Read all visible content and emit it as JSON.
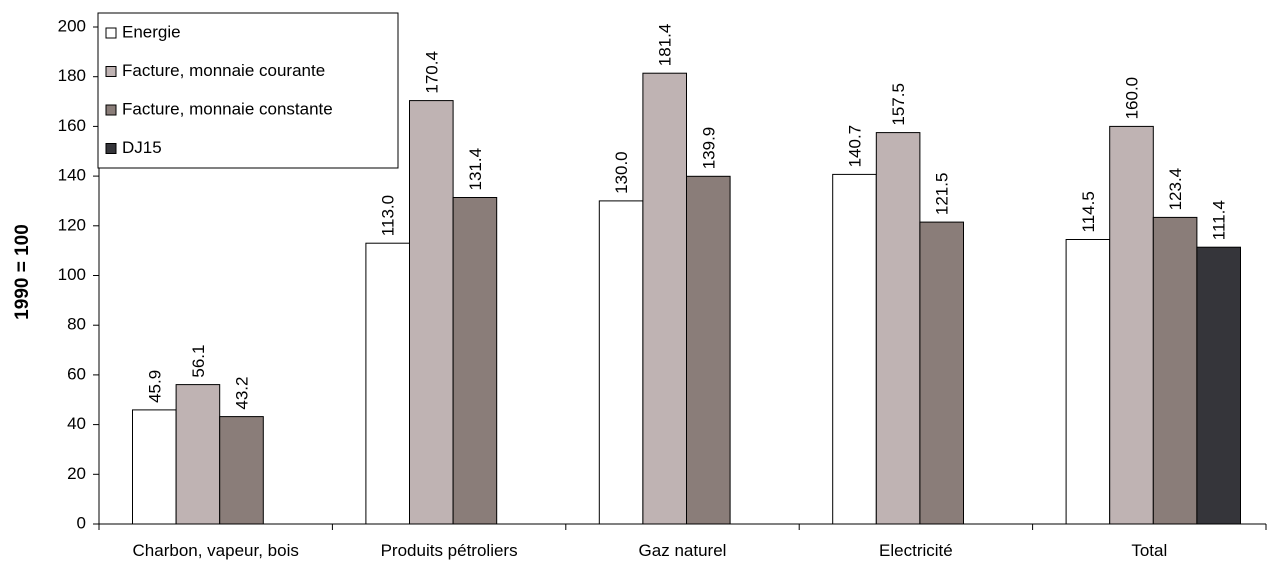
{
  "chart_data": {
    "type": "bar",
    "title": "",
    "xlabel": "",
    "ylabel": "1990 = 100",
    "ylim": [
      0,
      200
    ],
    "yticks": [
      0,
      20,
      40,
      60,
      80,
      100,
      120,
      140,
      160,
      180,
      200
    ],
    "grid": false,
    "legend_position": "top-left",
    "categories": [
      "Charbon, vapeur, bois",
      "Produits pétroliers",
      "Gaz naturel",
      "Electricité",
      "Total"
    ],
    "series": [
      {
        "name": "Energie",
        "color": "#ffffff",
        "values": [
          45.9,
          113.0,
          130.0,
          140.7,
          114.5
        ]
      },
      {
        "name": "Facture, monnaie courante",
        "color": "#bfb3b3",
        "values": [
          56.1,
          170.4,
          181.4,
          157.5,
          160.0
        ]
      },
      {
        "name": "Facture, monnaie constante",
        "color": "#8a7d79",
        "values": [
          43.2,
          131.4,
          139.9,
          121.5,
          123.4
        ]
      },
      {
        "name": "DJ15",
        "color": "#35353a",
        "values": [
          null,
          null,
          null,
          null,
          111.4
        ]
      }
    ],
    "data_labels": [
      [
        "45.9",
        "113.0",
        "130.0",
        "140.7",
        "114.5"
      ],
      [
        "56.1",
        "170.4",
        "181.4",
        "157.5",
        "160.0"
      ],
      [
        "43.2",
        "131.4",
        "139.9",
        "121.5",
        "123.4"
      ],
      [
        null,
        null,
        null,
        null,
        "111.4"
      ]
    ]
  }
}
